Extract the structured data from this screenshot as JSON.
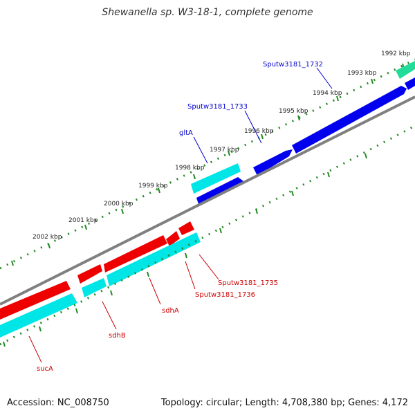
{
  "title": "Shewanella sp. W3-18-1, complete genome",
  "accession": "Accession: NC_008750",
  "topology": "Topology: circular; Length: 4,708,380 bp; Genes: 4,172",
  "colors": {
    "backbone": "#808080",
    "plus_gene": "#0000ee",
    "plus_rna": "#00e5e5",
    "minus_gene": "#ee0000",
    "minus_rna": "#00e5e5",
    "other": "#22dd99",
    "tick": "#228822",
    "label_plus": "#0000cc",
    "label_minus": "#cc0000"
  },
  "ticks": [
    "1992 kbp",
    "1993 kbp",
    "1994 kbp",
    "1995 kbp",
    "1996 kbp",
    "1997 kbp",
    "1998 kbp",
    "1999 kbp",
    "2000 kbp",
    "2001 kbp",
    "2002 kbp"
  ],
  "gene_labels": [
    {
      "name": "Sputw3181_1732",
      "strand": "plus"
    },
    {
      "name": "Sputw3181_1733",
      "strand": "plus"
    },
    {
      "name": "gltA",
      "strand": "plus"
    },
    {
      "name": "Sputw3181_1735",
      "strand": "minus"
    },
    {
      "name": "Sputw3181_1736",
      "strand": "minus"
    },
    {
      "name": "sdhA",
      "strand": "minus"
    },
    {
      "name": "sdhB",
      "strand": "minus"
    },
    {
      "name": "sucA",
      "strand": "minus"
    }
  ]
}
